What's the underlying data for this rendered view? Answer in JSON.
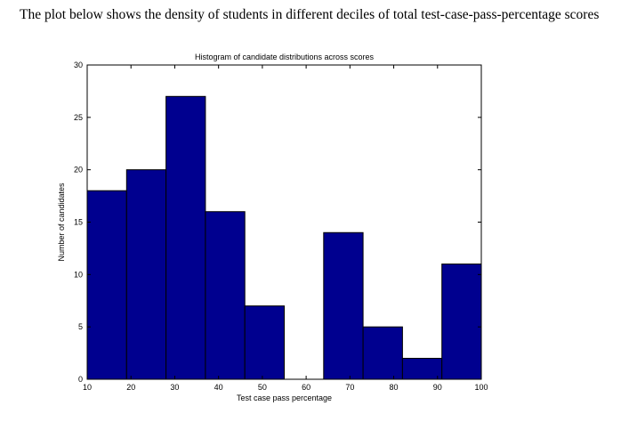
{
  "intro_text": "The plot below shows the density of students in different deciles of total test-case-pass-percentage scores",
  "chart_data": {
    "type": "bar",
    "title": "Histogram of candidate distributions across scores",
    "xlabel": "Test case pass percentage",
    "ylabel": "Number of candidates",
    "xlim": [
      10,
      100
    ],
    "ylim": [
      0,
      30
    ],
    "x_ticks": [
      10,
      20,
      30,
      40,
      50,
      60,
      70,
      80,
      90,
      100
    ],
    "y_ticks": [
      0,
      5,
      10,
      15,
      20,
      25,
      30
    ],
    "bin_edges": [
      10,
      19.9,
      29.8,
      39.7,
      49.6,
      59.5,
      69.4,
      79.3,
      89.2,
      90.1,
      100
    ],
    "values": [
      18,
      20,
      27,
      16,
      7,
      0,
      14,
      5,
      2,
      11
    ],
    "bar_color": "#00008f",
    "edge_color": "#000000",
    "grid": false,
    "legend": "none"
  }
}
